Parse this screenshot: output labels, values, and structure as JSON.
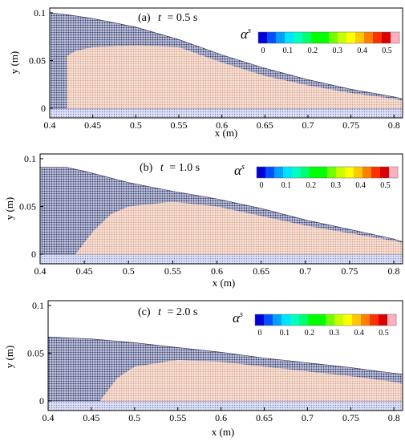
{
  "chart_data": [
    {
      "type": "area",
      "label": "(a)",
      "time_symbol": "t",
      "time_value": "= 0.5 s",
      "xlabel": "x (m)",
      "ylabel": "y (m)",
      "xlim": [
        0.4,
        0.81
      ],
      "ylim": [
        -0.01,
        0.105
      ],
      "x_ticks": [
        0.4,
        0.45,
        0.5,
        0.55,
        0.6,
        0.65,
        0.7,
        0.75,
        0.8
      ],
      "y_ticks": [
        0,
        0.05,
        0.1
      ],
      "series": [
        {
          "x": [
            0.4,
            0.42,
            0.45,
            0.5,
            0.55,
            0.6,
            0.65,
            0.7,
            0.75,
            0.8,
            0.81
          ],
          "values": [
            0.1,
            0.098,
            0.094,
            0.085,
            0.072,
            0.056,
            0.042,
            0.03,
            0.02,
            0.012,
            0.01
          ]
        },
        {
          "x": [
            0.42,
            0.43,
            0.45,
            0.5,
            0.55,
            0.6,
            0.65,
            0.7,
            0.75,
            0.8,
            0.81
          ],
          "values": [
            0.055,
            0.06,
            0.064,
            0.066,
            0.064,
            0.048,
            0.034,
            0.024,
            0.016,
            0.01,
            0.008
          ]
        }
      ]
    },
    {
      "type": "area",
      "label": "(b)",
      "time_symbol": "t",
      "time_value": "= 1.0 s",
      "xlabel": "x (m)",
      "ylabel": "y (m)",
      "xlim": [
        0.4,
        0.81
      ],
      "ylim": [
        -0.01,
        0.105
      ],
      "x_ticks": [
        0.4,
        0.45,
        0.5,
        0.55,
        0.6,
        0.65,
        0.7,
        0.75,
        0.8
      ],
      "y_ticks": [
        0,
        0.05,
        0.1
      ],
      "series": [
        {
          "x": [
            0.4,
            0.43,
            0.45,
            0.5,
            0.55,
            0.6,
            0.65,
            0.7,
            0.75,
            0.8,
            0.81
          ],
          "values": [
            0.091,
            0.091,
            0.087,
            0.075,
            0.066,
            0.058,
            0.048,
            0.036,
            0.026,
            0.016,
            0.013
          ]
        },
        {
          "x": [
            0.44,
            0.46,
            0.48,
            0.5,
            0.55,
            0.6,
            0.65,
            0.7,
            0.75,
            0.8,
            0.81
          ],
          "values": [
            0.0,
            0.024,
            0.042,
            0.05,
            0.055,
            0.05,
            0.04,
            0.03,
            0.022,
            0.014,
            0.012
          ]
        }
      ]
    },
    {
      "type": "area",
      "label": "(c)",
      "time_symbol": "t",
      "time_value": "= 2.0 s",
      "xlabel": "x (m)",
      "ylabel": "y (m)",
      "xlim": [
        0.4,
        0.81
      ],
      "ylim": [
        -0.01,
        0.105
      ],
      "x_ticks": [
        0.4,
        0.45,
        0.5,
        0.55,
        0.6,
        0.65,
        0.7,
        0.75,
        0.8
      ],
      "y_ticks": [
        0,
        0.05,
        0.1
      ],
      "series": [
        {
          "x": [
            0.4,
            0.45,
            0.5,
            0.55,
            0.6,
            0.65,
            0.7,
            0.75,
            0.8,
            0.81
          ],
          "values": [
            0.067,
            0.065,
            0.061,
            0.056,
            0.051,
            0.045,
            0.04,
            0.035,
            0.029,
            0.028
          ]
        },
        {
          "x": [
            0.46,
            0.48,
            0.5,
            0.55,
            0.6,
            0.65,
            0.7,
            0.75,
            0.8,
            0.81
          ],
          "values": [
            0.0,
            0.024,
            0.036,
            0.043,
            0.041,
            0.036,
            0.031,
            0.026,
            0.02,
            0.018
          ]
        }
      ]
    }
  ],
  "colorbar": {
    "symbol": "α",
    "superscript": "s",
    "tick_labels": [
      "0",
      "0.1",
      "0.2",
      "0.3",
      "0.4",
      "0.5"
    ],
    "tick_values": [
      0,
      0.1,
      0.2,
      0.3,
      0.4,
      0.5
    ],
    "range": [
      0,
      0.55
    ],
    "colors": [
      "#0000d8",
      "#0050ff",
      "#00a0ff",
      "#00e5ff",
      "#00ffc0",
      "#00ff70",
      "#00ff00",
      "#00ff00",
      "#70ff00",
      "#c8ff00",
      "#ffff00",
      "#ffc800",
      "#ff8000",
      "#ff3000",
      "#d80000",
      "#ffb0c0"
    ]
  },
  "colors": {
    "fluid_dark": "#3a3f63",
    "fluid_light": "#aab0d8",
    "sediment": "#e6b6a2",
    "bed": "#8f96d6"
  }
}
